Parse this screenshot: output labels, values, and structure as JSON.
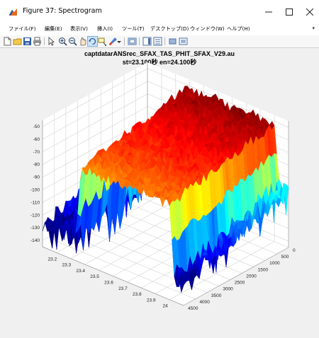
{
  "window": {
    "title": "Figure 37: Spectrogram",
    "minimize_icon": "minimize-icon",
    "maximize_icon": "maximize-icon",
    "close_icon": "close-icon"
  },
  "menu": {
    "items": [
      "ファイル(F)",
      "編集(E)",
      "表示(V)",
      "挿入(I)",
      "ツール(T)",
      "デスクトップ(D)",
      "ウィンドウ(W)",
      "ヘルプ(H)"
    ],
    "overflow_icon": "chevron-down-icon"
  },
  "toolbar": {
    "icons": [
      "new-figure-icon",
      "open-file-icon",
      "save-icon",
      "print-icon",
      "pointer-icon",
      "zoom-in-icon",
      "zoom-out-icon",
      "pan-icon",
      "rotate-3d-icon",
      "data-cursor-icon",
      "brush-icon",
      "link-plot-icon",
      "colorbar-icon",
      "legend-icon",
      "hide-tools-icon",
      "show-tools-icon"
    ]
  },
  "chart_data": {
    "type": "surface",
    "title_line1": "captdatarANSrec_SFAX_TAS_PHIT_SFAX_V29.au",
    "title_line2": "st=23.100秒 en=24.100秒",
    "x_ticks": [
      23.2,
      23.3,
      23.4,
      23.5,
      23.6,
      23.7,
      23.8,
      23.9,
      24
    ],
    "y_ticks": [
      0,
      500,
      1000,
      1500,
      2000,
      2500,
      3000,
      3500,
      4000,
      4500
    ],
    "z_ticks": [
      -50,
      -60,
      -70,
      -80,
      -90,
      -100,
      -110,
      -120,
      -130,
      -140
    ],
    "xlim": [
      23.1,
      24.1
    ],
    "ylim": [
      0,
      4500
    ],
    "zlim": [
      -145,
      -45
    ],
    "grid": true,
    "colormap": "jet",
    "surface_profile": {
      "time_start_active": 23.37,
      "time_end_active": 24.0,
      "level_active_low_freq": -52,
      "level_active_high_freq": -70,
      "level_silent_low_freq": -100,
      "level_silent_high_freq": -128
    }
  }
}
